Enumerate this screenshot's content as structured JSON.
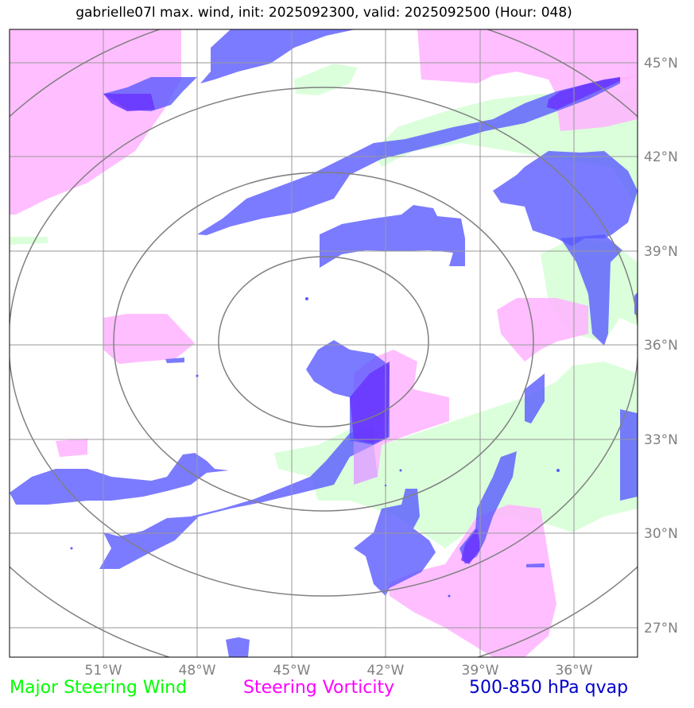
{
  "title": "gabrielle07l max. wind, init: 2025092300, valid: 2025092500 (Hour: 048)",
  "colors": {
    "steering_wind": "#00ff00",
    "steering_vorticity": "#ff00ff",
    "qvap": "#0000cc",
    "qvap_fill": "#5a5aff",
    "vorticity_fill": "#ffb3ff",
    "wind_fill": "#ccffcc",
    "grid": "#999999",
    "rings": "#808080"
  },
  "legend": {
    "wind": "Major Steering Wind",
    "vorticity": "Steering Vorticity",
    "qvap": "500-850 hPa qvap"
  },
  "axes": {
    "lon_labels": [
      "51°W",
      "48°W",
      "45°W",
      "42°W",
      "39°W",
      "36°W"
    ],
    "lat_labels": [
      "45°N",
      "42°N",
      "39°N",
      "36°N",
      "33°N",
      "30°N",
      "27°N"
    ],
    "lon_range": [
      "-54",
      "-34"
    ],
    "lat_range": [
      "26",
      "46"
    ]
  },
  "chart_data": {
    "type": "map",
    "title": "gabrielle07l max. wind, init: 2025092300, valid: 2025092500 (Hour: 048)",
    "center": {
      "lat": 36.1,
      "lon": -44.0
    },
    "range_rings": 4,
    "layers": [
      "Major Steering Wind",
      "Steering Vorticity",
      "500-850 hPa qvap"
    ]
  }
}
